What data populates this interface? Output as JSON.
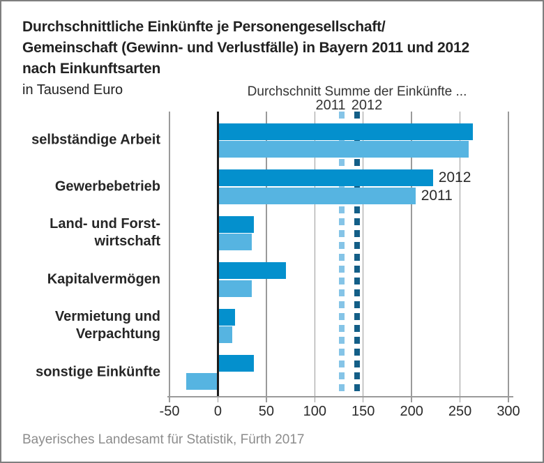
{
  "title": {
    "line1": "Durchschnittliche Einkünfte je Personengesellschaft/",
    "line2": "Gemeinschaft (Gewinn- und Verlustfälle) in Bayern 2011 und 2012",
    "line3": "nach Einkunftsarten",
    "subtitle": "in Tausend Euro"
  },
  "annotation": {
    "avg_label": "Durchschnitt Summe der Einkünfte ...",
    "year_left": "2011",
    "year_right": "2012"
  },
  "footer": {
    "source": "Bayerisches Landesamt für Statistik, Fürth 2017"
  },
  "colors": {
    "bar_2012": "#0490cd",
    "bar_2011": "#56b4e1",
    "avg_line_2011": "#85c4e7",
    "avg_line_2012": "#135e87",
    "gridline": "#9a9a9a",
    "zero_line": "#1c1c1c",
    "text": "#262626",
    "footer_text": "#8c8c8c"
  },
  "chart_data": {
    "type": "bar",
    "orientation": "horizontal",
    "title": "Durchschnittliche Einkünfte je Personengesellschaft/Gemeinschaft (Gewinn- und Verlustfälle) in Bayern 2011 und 2012 nach Einkunftsarten",
    "unit": "in Tausend Euro",
    "categories": [
      "selbständige Arbeit",
      "Gewerbebetrieb",
      "Land- und Forstwirtschaft",
      "Kapitalvermögen",
      "Vermietung und Verpachtung",
      "sonstige Einkünfte"
    ],
    "category_display": [
      [
        "selbständige Arbeit"
      ],
      [
        "Gewerbebetrieb"
      ],
      [
        "Land- und Forst-",
        "wirtschaft"
      ],
      [
        "Kapitalvermögen"
      ],
      [
        "Vermietung und",
        "Verpachtung"
      ],
      [
        "sonstige Einkünfte"
      ]
    ],
    "series": [
      {
        "name": "2012",
        "color": "#0490cd",
        "values": [
          263,
          222,
          37,
          70,
          18,
          37
        ]
      },
      {
        "name": "2011",
        "color": "#56b4e1",
        "values": [
          259,
          204,
          35,
          35,
          15,
          -33
        ]
      }
    ],
    "avg_lines": [
      {
        "name": "2011",
        "value": 128,
        "color": "#85c4e7",
        "style": "dashed",
        "label": "Durchschnitt Summe der Einkünfte ... 2011"
      },
      {
        "name": "2012",
        "value": 144,
        "color": "#135e87",
        "style": "dashed",
        "label": "Durchschnitt Summe der Einkünfte ... 2012"
      }
    ],
    "bar_labels": [
      {
        "category_index": 1,
        "series_index": 0,
        "label": "2012"
      },
      {
        "category_index": 1,
        "series_index": 1,
        "label": "2011"
      }
    ],
    "xlabel": "",
    "ylabel": "",
    "xlim": [
      -50,
      300
    ],
    "xticks": [
      -50,
      0,
      50,
      100,
      150,
      200,
      250,
      300
    ],
    "grid": true,
    "legend_position": "none"
  }
}
